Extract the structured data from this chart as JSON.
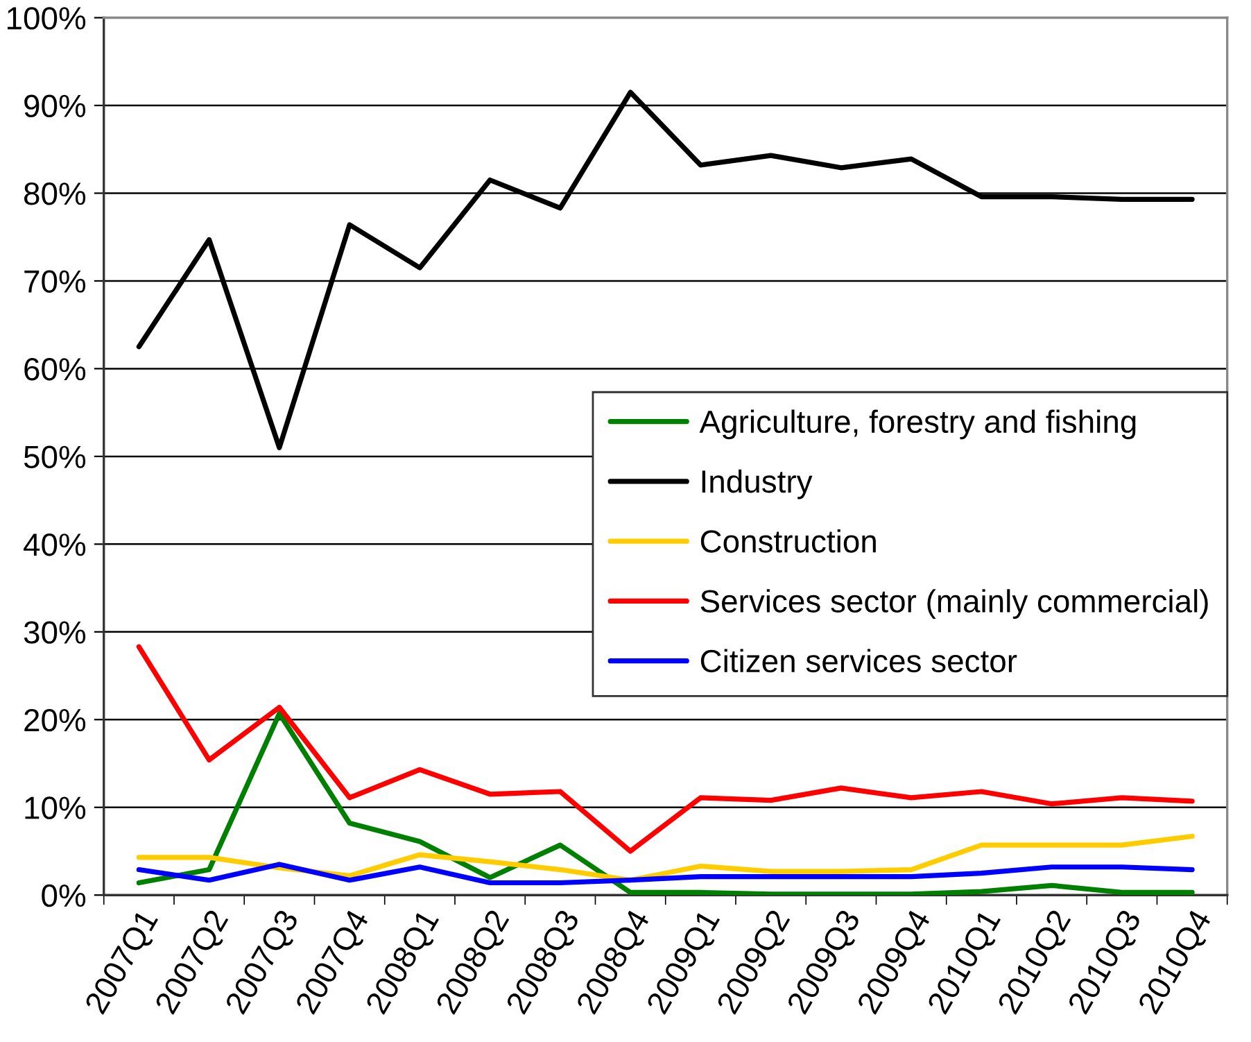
{
  "chart_data": {
    "type": "line",
    "categories": [
      "2007Q1",
      "2007Q2",
      "2007Q3",
      "2007Q4",
      "2008Q1",
      "2008Q2",
      "2008Q3",
      "2008Q4",
      "2009Q1",
      "2009Q2",
      "2009Q3",
      "2009Q4",
      "2010Q1",
      "2010Q2",
      "2010Q3",
      "2010Q4"
    ],
    "series": [
      {
        "name": "Agriculture, forestry and fishing",
        "color": "#008000",
        "values": [
          1.4,
          2.9,
          20.7,
          8.2,
          6.1,
          2.0,
          5.7,
          0.3,
          0.3,
          0.1,
          0.1,
          0.1,
          0.4,
          1.1,
          0.3,
          0.3
        ]
      },
      {
        "name": "Industry",
        "color": "#000000",
        "values": [
          62.5,
          74.7,
          51.0,
          76.4,
          71.5,
          81.5,
          78.3,
          91.5,
          83.2,
          84.3,
          82.9,
          83.9,
          79.6,
          79.6,
          79.3,
          79.3
        ]
      },
      {
        "name": "Construction",
        "color": "#ffcc00",
        "values": [
          4.3,
          4.3,
          3.1,
          2.2,
          4.6,
          3.8,
          2.9,
          1.7,
          3.3,
          2.7,
          2.7,
          2.9,
          5.7,
          5.7,
          5.7,
          6.7
        ]
      },
      {
        "name": "Services sector (mainly commercial)",
        "color": "#ff0000",
        "values": [
          28.3,
          15.4,
          21.4,
          11.1,
          14.3,
          11.5,
          11.8,
          5.0,
          11.1,
          10.8,
          12.2,
          11.1,
          11.8,
          10.4,
          11.1,
          10.7
        ]
      },
      {
        "name": "Citizen services sector",
        "color": "#0000ff",
        "values": [
          2.9,
          1.7,
          3.5,
          1.7,
          3.2,
          1.4,
          1.4,
          1.7,
          2.1,
          2.1,
          2.1,
          2.1,
          2.5,
          3.2,
          3.2,
          2.9
        ]
      }
    ],
    "ylim": [
      0,
      100
    ],
    "yticks": [
      {
        "value": 0,
        "label": "0%"
      },
      {
        "value": 10,
        "label": "10%"
      },
      {
        "value": 20,
        "label": "20%"
      },
      {
        "value": 30,
        "label": "30%"
      },
      {
        "value": 40,
        "label": "40%"
      },
      {
        "value": 50,
        "label": "50%"
      },
      {
        "value": 60,
        "label": "60%"
      },
      {
        "value": 70,
        "label": "70%"
      },
      {
        "value": 80,
        "label": "80%"
      },
      {
        "value": 90,
        "label": "90%"
      },
      {
        "value": 100,
        "label": "100%"
      }
    ],
    "grid": "y",
    "legend": "right",
    "marker": "none",
    "line_style": "solid"
  }
}
